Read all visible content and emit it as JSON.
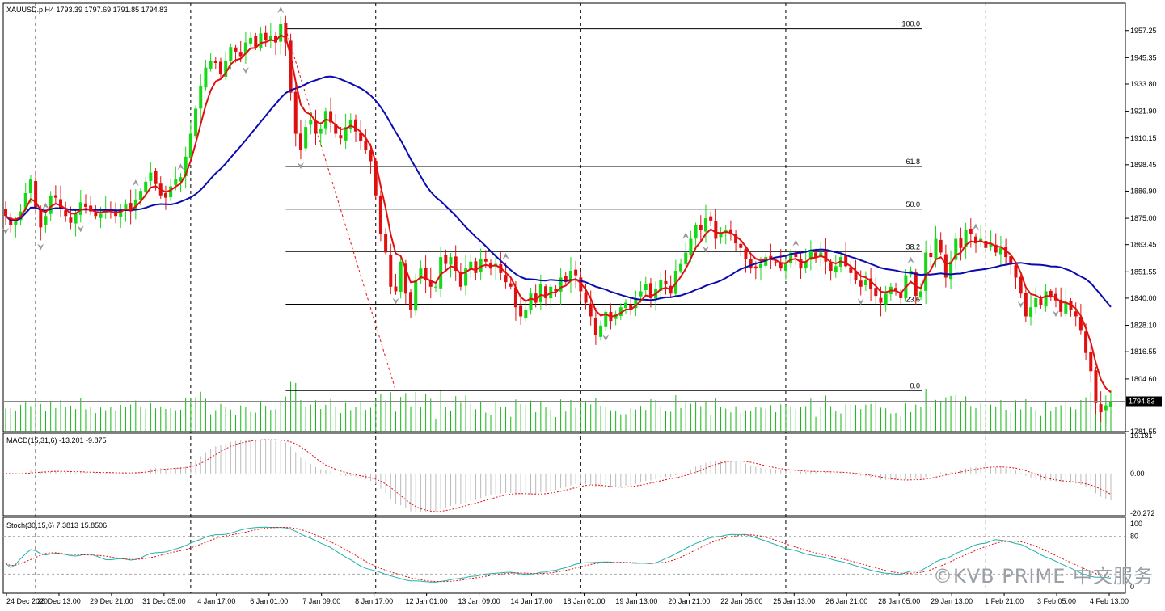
{
  "header": {
    "symbol_line": "XAUUSD.p,H4  1793.39 1797.69 1791.85 1794.83",
    "macd_line": "MACD(15,31,6) -13.201 -9.875",
    "stoch_line": "Stoch(30,15,6) 7.3813 15.8506"
  },
  "watermark": "©KVB PRIME 中文服务",
  "colors": {
    "bull": "#16d916",
    "bear": "#e11010",
    "ma_fast": "#e11010",
    "ma_slow": "#0a0ab0",
    "volume": "#16b816",
    "stoch_main": "#20b2aa",
    "stoch_signal": "#e11010"
  },
  "chart_data": {
    "type": "candlestick",
    "main": {
      "ylim": [
        1781.55,
        1969.2
      ],
      "y_ticks": [
        1957.25,
        1945.35,
        1933.8,
        1921.9,
        1910.15,
        1898.45,
        1886.9,
        1875.0,
        1863.45,
        1851.55,
        1840.0,
        1828.1,
        1816.55,
        1804.6,
        1781.55
      ],
      "current_price": "1794.83",
      "fib_levels": [
        {
          "label": "100.0",
          "price": 1958.0
        },
        {
          "label": "61.8",
          "price": 1897.7
        },
        {
          "label": "50.0",
          "price": 1879.0
        },
        {
          "label": "38.2",
          "price": 1860.4
        },
        {
          "label": "23.6",
          "price": 1837.3
        },
        {
          "label": "0.0",
          "price": 1799.5
        }
      ],
      "closes": [
        1876,
        1872,
        1874,
        1878,
        1886,
        1892,
        1880,
        1871,
        1876,
        1885,
        1884,
        1879,
        1876,
        1873,
        1877,
        1882,
        1880,
        1878,
        1876,
        1877,
        1879,
        1878,
        1876,
        1879,
        1881,
        1878,
        1883,
        1887,
        1891,
        1895,
        1890,
        1885,
        1884,
        1889,
        1892,
        1893,
        1902,
        1912,
        1923,
        1933,
        1941,
        1944,
        1943,
        1938,
        1944,
        1950,
        1948,
        1946,
        1952,
        1954,
        1950,
        1956,
        1953,
        1955,
        1952,
        1960,
        1952,
        1930,
        1912,
        1905,
        1915,
        1918,
        1912,
        1914,
        1922,
        1917,
        1912,
        1910,
        1915,
        1918,
        1913,
        1909,
        1905,
        1900,
        1885,
        1868,
        1860,
        1845,
        1843,
        1856,
        1842,
        1835,
        1848,
        1853,
        1848,
        1845,
        1845,
        1858,
        1855,
        1858,
        1852,
        1845,
        1853,
        1856,
        1851,
        1857,
        1856,
        1853,
        1855,
        1851,
        1847,
        1845,
        1836,
        1832,
        1835,
        1842,
        1838,
        1846,
        1840,
        1845,
        1843,
        1849,
        1847,
        1852,
        1850,
        1843,
        1838,
        1832,
        1824,
        1828,
        1834,
        1830,
        1833,
        1836,
        1838,
        1835,
        1840,
        1843,
        1846,
        1840,
        1844,
        1848,
        1846,
        1842,
        1852,
        1855,
        1860,
        1866,
        1872,
        1870,
        1875,
        1874,
        1866,
        1868,
        1870,
        1868,
        1864,
        1862,
        1857,
        1853,
        1853,
        1855,
        1858,
        1857,
        1856,
        1853,
        1855,
        1860,
        1858,
        1853,
        1856,
        1861,
        1858,
        1860,
        1856,
        1852,
        1854,
        1858,
        1854,
        1851,
        1848,
        1845,
        1848,
        1844,
        1841,
        1838,
        1842,
        1845,
        1843,
        1840,
        1850,
        1852,
        1841,
        1843,
        1860,
        1858,
        1866,
        1860,
        1849,
        1856,
        1866,
        1862,
        1870,
        1868,
        1864,
        1866,
        1862,
        1864,
        1860,
        1862,
        1858,
        1855,
        1849,
        1842,
        1832,
        1836,
        1840,
        1837,
        1843,
        1841,
        1839,
        1834,
        1838,
        1835,
        1832,
        1826,
        1816,
        1808,
        1794,
        1790,
        1793,
        1795
      ],
      "ma_fast_period": 5,
      "ma_slow_period": 28,
      "swing_high_indices": [
        8,
        26,
        35,
        55,
        100,
        136,
        158,
        181,
        194
      ],
      "swing_low_indices": [
        0,
        7,
        15,
        48,
        59,
        78,
        120,
        140,
        171,
        203,
        210
      ]
    },
    "time_axis": {
      "labels": [
        "24 Dec 2020",
        "28 Dec 13:00",
        "29 Dec 21:00",
        "31 Dec 05:00",
        "4 Jan 17:00",
        "6 Jan 01:00",
        "7 Jan 09:00",
        "8 Jan 17:00",
        "12 Jan 01:00",
        "13 Jan 09:00",
        "14 Jan 17:00",
        "18 Jan 01:00",
        "19 Jan 13:00",
        "20 Jan 21:00",
        "22 Jan 05:00",
        "25 Jan 13:00",
        "26 Jan 21:00",
        "28 Jan 05:00",
        "29 Jan 13:00",
        "1 Feb 21:00",
        "3 Feb 05:00",
        "4 Feb 13:00"
      ],
      "separator_indices": [
        6,
        37,
        74,
        115,
        156,
        196
      ]
    },
    "macd": {
      "y_ticks": [
        "19.181",
        "0.00",
        "-20.272"
      ],
      "ylim": [
        -21.5,
        20.5
      ]
    },
    "stoch": {
      "y_ticks": [
        "100",
        "80",
        "0"
      ],
      "levels": [
        80,
        20
      ],
      "ylim": [
        0,
        100
      ]
    }
  }
}
